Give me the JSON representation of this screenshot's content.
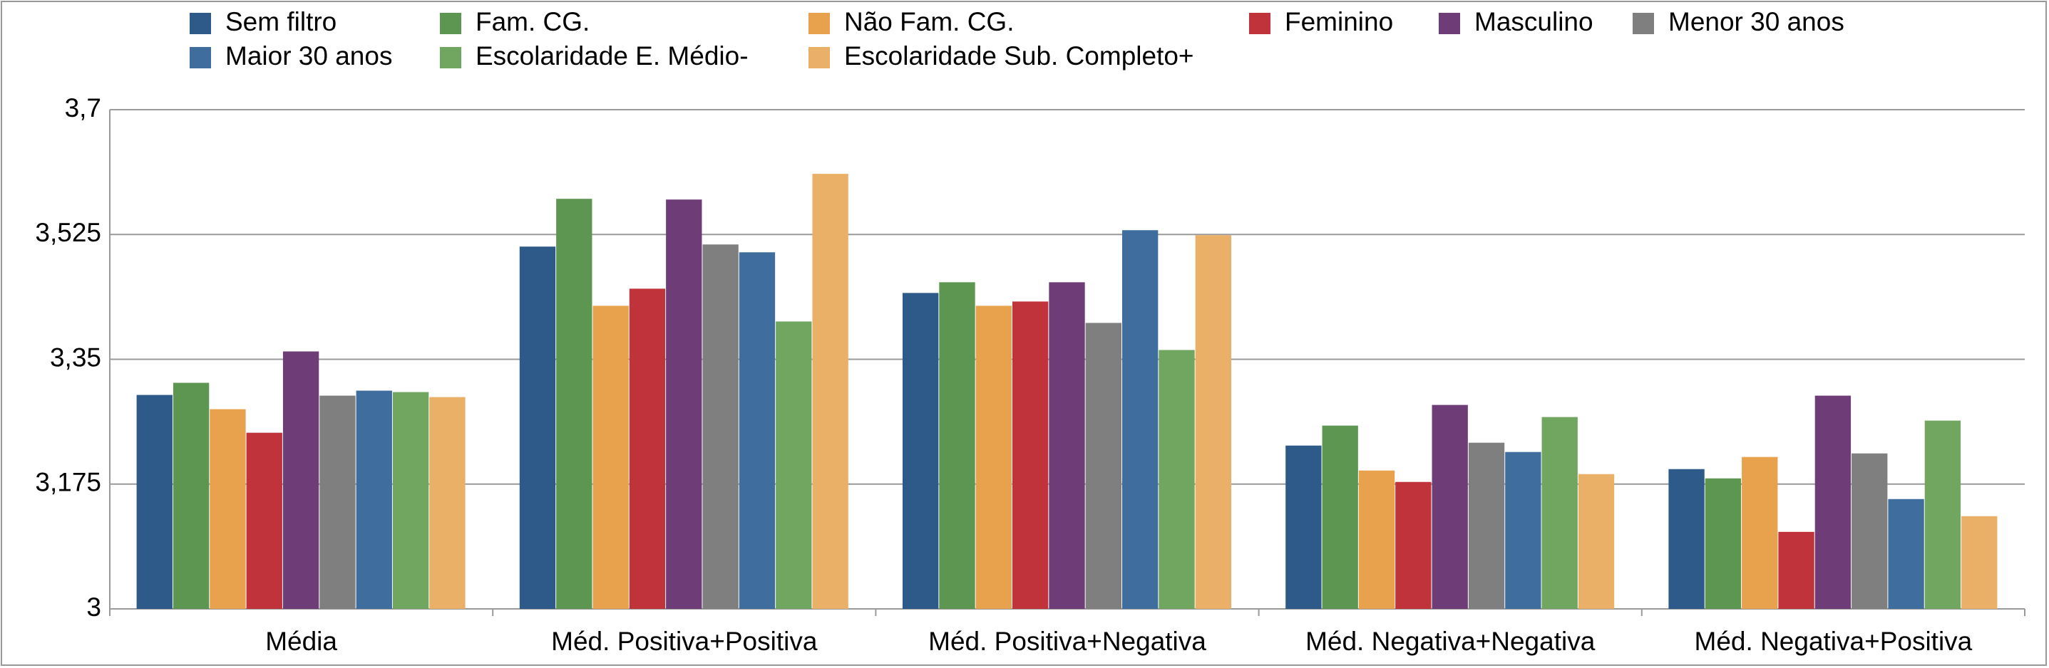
{
  "chart_data": {
    "type": "bar",
    "categories": [
      "Média",
      "Méd. Positiva+Positiva",
      "Méd. Positiva+Negativa",
      "Méd. Negativa+Negativa",
      "Méd. Negativa+Positiva"
    ],
    "series": [
      {
        "name": "Sem filtro",
        "color": "#2e5a8a",
        "values": [
          3.3,
          3.508,
          3.443,
          3.229,
          3.196
        ]
      },
      {
        "name": "Fam. CG.",
        "color": "#5c9650",
        "values": [
          3.317,
          3.575,
          3.458,
          3.257,
          3.183
        ]
      },
      {
        "name": "Não Fam. CG.",
        "color": "#e8a14c",
        "values": [
          3.28,
          3.425,
          3.425,
          3.194,
          3.213
        ]
      },
      {
        "name": "Feminino",
        "color": "#c0333a",
        "values": [
          3.247,
          3.449,
          3.431,
          3.178,
          3.108
        ]
      },
      {
        "name": "Masculino",
        "color": "#6e3d78",
        "values": [
          3.361,
          3.574,
          3.458,
          3.286,
          3.299
        ]
      },
      {
        "name": "Menor 30 anos",
        "color": "#7f7f7f",
        "values": [
          3.299,
          3.511,
          3.401,
          3.233,
          3.218
        ]
      },
      {
        "name": "Maior 30 anos",
        "color": "#3f6d9e",
        "values": [
          3.306,
          3.5,
          3.531,
          3.22,
          3.154
        ]
      },
      {
        "name": "Escolaridade E. Médio-",
        "color": "#70a660",
        "values": [
          3.304,
          3.403,
          3.363,
          3.269,
          3.264
        ]
      },
      {
        "name": "Escolaridade Sub. Completo+",
        "color": "#ebb067",
        "values": [
          3.297,
          3.61,
          3.524,
          3.189,
          3.13
        ]
      }
    ],
    "ylim": [
      3,
      3.7
    ],
    "yticks": [
      3,
      {
        "value": 3.175,
        "label": "3,175"
      },
      {
        "value": 3.35,
        "label": "3,35"
      },
      {
        "value": 3.525,
        "label": "3,525"
      },
      {
        "value": 3.7,
        "label": "3,7"
      }
    ],
    "grid": true
  }
}
